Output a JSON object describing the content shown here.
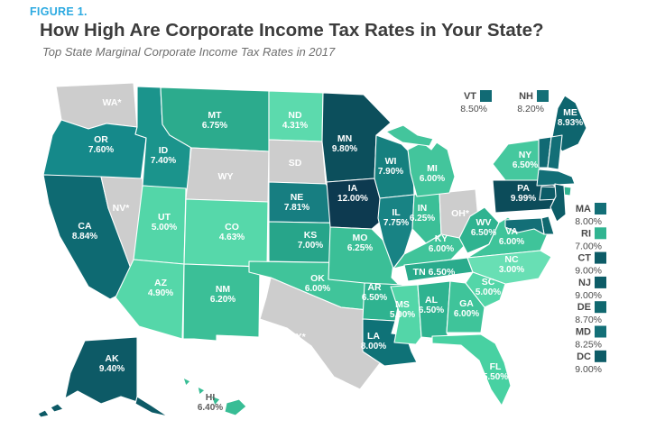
{
  "header": {
    "figure_label": "FIGURE 1.",
    "title": "How High Are Corporate Income Tax Rates in Your State?",
    "subtitle": "Top State Marginal Corporate Income Tax Rates in 2017"
  },
  "colors": {
    "accent_blue": "#2caae1",
    "no_tax_gray": "#cdcdcd",
    "scale_low": "#68dfb4",
    "scale_high": "#0d3a50"
  },
  "map": {
    "states": [
      {
        "abbr": "WA",
        "display": "WA*",
        "rate": null,
        "fill": "#cdcdcd",
        "style": "single"
      },
      {
        "abbr": "OR",
        "display": "OR",
        "rate": "7.60%",
        "fill": "#15898a",
        "style": "two"
      },
      {
        "abbr": "CA",
        "display": "CA",
        "rate": "8.84%",
        "fill": "#0e6a72",
        "style": "two"
      },
      {
        "abbr": "NV",
        "display": "NV*",
        "rate": null,
        "fill": "#cdcdcd",
        "style": "single"
      },
      {
        "abbr": "ID",
        "display": "ID",
        "rate": "7.40%",
        "fill": "#1b948c",
        "style": "two"
      },
      {
        "abbr": "MT",
        "display": "MT",
        "rate": "6.75%",
        "fill": "#2cab8d",
        "style": "two"
      },
      {
        "abbr": "WY",
        "display": "WY",
        "rate": null,
        "fill": "#cdcdcd",
        "style": "single"
      },
      {
        "abbr": "UT",
        "display": "UT",
        "rate": "5.00%",
        "fill": "#53d6a8",
        "style": "two"
      },
      {
        "abbr": "CO",
        "display": "CO",
        "rate": "4.63%",
        "fill": "#56d8aa",
        "style": "two"
      },
      {
        "abbr": "AZ",
        "display": "AZ",
        "rate": "4.90%",
        "fill": "#55d7a9",
        "style": "two"
      },
      {
        "abbr": "NM",
        "display": "NM",
        "rate": "6.20%",
        "fill": "#3bbf97",
        "style": "two"
      },
      {
        "abbr": "ND",
        "display": "ND",
        "rate": "4.31%",
        "fill": "#5cdaad",
        "style": "two"
      },
      {
        "abbr": "SD",
        "display": "SD",
        "rate": null,
        "fill": "#cdcdcd",
        "style": "single"
      },
      {
        "abbr": "NE",
        "display": "NE",
        "rate": "7.81%",
        "fill": "#177e81",
        "style": "two"
      },
      {
        "abbr": "KS",
        "display": "KS",
        "rate": "7.00%",
        "fill": "#27a58a",
        "style": "two"
      },
      {
        "abbr": "OK",
        "display": "OK",
        "rate": "6.00%",
        "fill": "#40c49a",
        "style": "two"
      },
      {
        "abbr": "TX",
        "display": "TX*",
        "rate": null,
        "fill": "#cdcdcd",
        "style": "single"
      },
      {
        "abbr": "MN",
        "display": "MN",
        "rate": "9.80%",
        "fill": "#0c4f5c",
        "style": "two"
      },
      {
        "abbr": "IA",
        "display": "IA",
        "rate": "12.00%",
        "fill": "#0d3a50",
        "style": "two"
      },
      {
        "abbr": "MO",
        "display": "MO",
        "rate": "6.25%",
        "fill": "#3bbf97",
        "style": "two"
      },
      {
        "abbr": "AR",
        "display": "AR",
        "rate": "6.50%",
        "fill": "#2fb390",
        "style": "two"
      },
      {
        "abbr": "LA",
        "display": "LA",
        "rate": "8.00%",
        "fill": "#0f7277",
        "style": "two"
      },
      {
        "abbr": "WI",
        "display": "WI",
        "rate": "7.90%",
        "fill": "#16807f",
        "style": "two"
      },
      {
        "abbr": "IL",
        "display": "IL",
        "rate": "7.75%",
        "fill": "#188384",
        "style": "two"
      },
      {
        "abbr": "IN",
        "display": "IN",
        "rate": "6.25%",
        "fill": "#3bbf97",
        "style": "two"
      },
      {
        "abbr": "OH",
        "display": "OH*",
        "rate": null,
        "fill": "#cdcdcd",
        "style": "single"
      },
      {
        "abbr": "MI",
        "display": "MI",
        "rate": "6.00%",
        "fill": "#43c59c",
        "style": "two"
      },
      {
        "abbr": "KY",
        "display": "KY",
        "rate": "6.00%",
        "fill": "#40c49a",
        "style": "two"
      },
      {
        "abbr": "TN",
        "display": "TN",
        "rate": "6.50%",
        "fill": "#2aab8c",
        "style": "inline"
      },
      {
        "abbr": "MS",
        "display": "MS",
        "rate": "5.00%",
        "fill": "#53d6a8",
        "style": "two"
      },
      {
        "abbr": "AL",
        "display": "AL",
        "rate": "6.50%",
        "fill": "#2fb390",
        "style": "two"
      },
      {
        "abbr": "GA",
        "display": "GA",
        "rate": "6.00%",
        "fill": "#3fc49a",
        "style": "two"
      },
      {
        "abbr": "WV",
        "display": "WV",
        "rate": "6.50%",
        "fill": "#2fb390",
        "style": "two"
      },
      {
        "abbr": "VA",
        "display": "VA",
        "rate": "6.00%",
        "fill": "#3fc49a",
        "style": "two"
      },
      {
        "abbr": "NC",
        "display": "NC",
        "rate": "3.00%",
        "fill": "#68dfb4",
        "style": "two"
      },
      {
        "abbr": "SC",
        "display": "SC",
        "rate": "5.00%",
        "fill": "#53d6a8",
        "style": "two"
      },
      {
        "abbr": "FL",
        "display": "FL",
        "rate": "5.50%",
        "fill": "#48d1a2",
        "style": "two"
      },
      {
        "abbr": "NY",
        "display": "NY",
        "rate": "6.50%",
        "fill": "#45c89e",
        "style": "two"
      },
      {
        "abbr": "PA",
        "display": "PA",
        "rate": "9.99%",
        "fill": "#0c4c5a",
        "style": "two"
      },
      {
        "abbr": "ME",
        "display": "ME",
        "rate": "8.93%",
        "fill": "#0e656e",
        "style": "two"
      },
      {
        "abbr": "VT",
        "display": "VT",
        "rate": "8.50%",
        "fill": "#116a74",
        "style": "none"
      },
      {
        "abbr": "NH",
        "display": "NH",
        "rate": "8.20%",
        "fill": "#136f77",
        "style": "none"
      },
      {
        "abbr": "MA",
        "display": "MA",
        "rate": "8.00%",
        "fill": "#136f77",
        "style": "none"
      },
      {
        "abbr": "RI",
        "display": "RI",
        "rate": "7.00%",
        "fill": "#31b491",
        "style": "none"
      },
      {
        "abbr": "CT",
        "display": "CT",
        "rate": "9.00%",
        "fill": "#0d5c67",
        "style": "none"
      },
      {
        "abbr": "NJ",
        "display": "NJ",
        "rate": "9.00%",
        "fill": "#0d5c67",
        "style": "none"
      },
      {
        "abbr": "DE",
        "display": "DE",
        "rate": "8.70%",
        "fill": "#10686f",
        "style": "none"
      },
      {
        "abbr": "MD",
        "display": "MD",
        "rate": "8.25%",
        "fill": "#136f77",
        "style": "none"
      },
      {
        "abbr": "AK",
        "display": "AK",
        "rate": "9.40%",
        "fill": "#0d5a66",
        "style": "two"
      },
      {
        "abbr": "HI",
        "display": "HI",
        "rate": "6.40%",
        "fill": "#38bd95",
        "style": "outside"
      }
    ],
    "callouts_top": [
      {
        "abbr": "VT",
        "rate": "8.50%",
        "swatch": "#116a74"
      },
      {
        "abbr": "NH",
        "rate": "8.20%",
        "swatch": "#136f77"
      }
    ],
    "callouts_right": [
      {
        "abbr": "MA",
        "rate": "8.00%",
        "swatch": "#136f77"
      },
      {
        "abbr": "RI",
        "rate": "7.00%",
        "swatch": "#31b491"
      },
      {
        "abbr": "CT",
        "rate": "9.00%",
        "swatch": "#0d5c67"
      },
      {
        "abbr": "NJ",
        "rate": "9.00%",
        "swatch": "#0d5c67"
      },
      {
        "abbr": "DE",
        "rate": "8.70%",
        "swatch": "#10686f"
      },
      {
        "abbr": "MD",
        "rate": "8.25%",
        "swatch": "#136f77"
      },
      {
        "abbr": "DC",
        "rate": "9.00%",
        "swatch": "#0d5c67"
      }
    ]
  },
  "chart_data": {
    "type": "heatmap",
    "subtype": "us-choropleth",
    "title": "How High Are Corporate Income Tax Rates in Your State?",
    "subtitle": "Top State Marginal Corporate Income Tax Rates in 2017",
    "unit": "percent (top marginal corporate income tax rate, 2017)",
    "no_rate_marker": "* shown on gray states (WA, NV, TX, OH); WY and SD gray with no marker",
    "points": [
      {
        "state": "AK",
        "rate": 9.4
      },
      {
        "state": "AL",
        "rate": 6.5
      },
      {
        "state": "AR",
        "rate": 6.5
      },
      {
        "state": "AZ",
        "rate": 4.9
      },
      {
        "state": "CA",
        "rate": 8.84
      },
      {
        "state": "CO",
        "rate": 4.63
      },
      {
        "state": "CT",
        "rate": 9.0
      },
      {
        "state": "DC",
        "rate": 9.0
      },
      {
        "state": "DE",
        "rate": 8.7
      },
      {
        "state": "FL",
        "rate": 5.5
      },
      {
        "state": "GA",
        "rate": 6.0
      },
      {
        "state": "HI",
        "rate": 6.4
      },
      {
        "state": "IA",
        "rate": 12.0
      },
      {
        "state": "ID",
        "rate": 7.4
      },
      {
        "state": "IL",
        "rate": 7.75
      },
      {
        "state": "IN",
        "rate": 6.25
      },
      {
        "state": "KS",
        "rate": 7.0
      },
      {
        "state": "KY",
        "rate": 6.0
      },
      {
        "state": "LA",
        "rate": 8.0
      },
      {
        "state": "MA",
        "rate": 8.0
      },
      {
        "state": "MD",
        "rate": 8.25
      },
      {
        "state": "ME",
        "rate": 8.93
      },
      {
        "state": "MI",
        "rate": 6.0
      },
      {
        "state": "MN",
        "rate": 9.8
      },
      {
        "state": "MO",
        "rate": 6.25
      },
      {
        "state": "MS",
        "rate": 5.0
      },
      {
        "state": "MT",
        "rate": 6.75
      },
      {
        "state": "NC",
        "rate": 3.0
      },
      {
        "state": "ND",
        "rate": 4.31
      },
      {
        "state": "NE",
        "rate": 7.81
      },
      {
        "state": "NH",
        "rate": 8.2
      },
      {
        "state": "NJ",
        "rate": 9.0
      },
      {
        "state": "NM",
        "rate": 6.2
      },
      {
        "state": "NV",
        "rate": null
      },
      {
        "state": "NY",
        "rate": 6.5
      },
      {
        "state": "OH",
        "rate": null
      },
      {
        "state": "OK",
        "rate": 6.0
      },
      {
        "state": "OR",
        "rate": 7.6
      },
      {
        "state": "PA",
        "rate": 9.99
      },
      {
        "state": "RI",
        "rate": 7.0
      },
      {
        "state": "SC",
        "rate": 5.0
      },
      {
        "state": "SD",
        "rate": null
      },
      {
        "state": "TN",
        "rate": 6.5
      },
      {
        "state": "TX",
        "rate": null
      },
      {
        "state": "UT",
        "rate": 5.0
      },
      {
        "state": "VA",
        "rate": 6.0
      },
      {
        "state": "VT",
        "rate": 8.5
      },
      {
        "state": "WA",
        "rate": null
      },
      {
        "state": "WI",
        "rate": 7.9
      },
      {
        "state": "WV",
        "rate": 6.5
      },
      {
        "state": "WY",
        "rate": null
      }
    ]
  }
}
